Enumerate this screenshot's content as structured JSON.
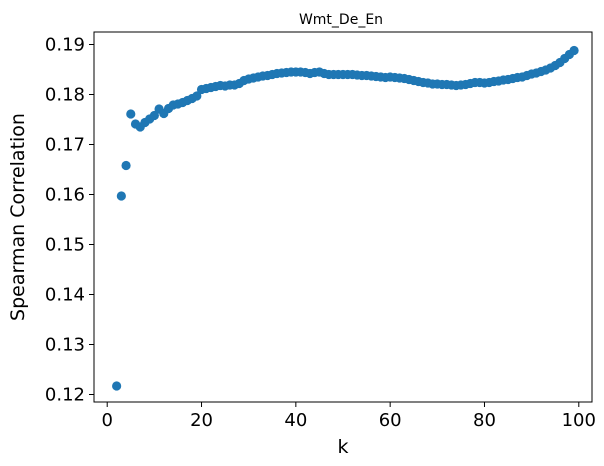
{
  "chart_data": {
    "type": "scatter",
    "title": "Wmt_De_En",
    "xlabel": "k",
    "ylabel": "Spearman Correlation",
    "xlim": [
      -2.8,
      102.8
    ],
    "ylim": [
      0.1185,
      0.1925
    ],
    "xticks": [
      0,
      20,
      40,
      60,
      80,
      100
    ],
    "yticks": [
      0.12,
      0.13,
      0.14,
      0.15,
      0.16,
      0.17,
      0.18,
      0.19
    ],
    "xtick_labels": [
      "0",
      "20",
      "40",
      "60",
      "80",
      "100"
    ],
    "ytick_labels": [
      "0.12",
      "0.13",
      "0.14",
      "0.15",
      "0.16",
      "0.17",
      "0.18",
      "0.19"
    ],
    "grid": false,
    "marker_color": "#1f77b4",
    "series": [
      {
        "x": [
          2,
          3,
          4,
          5,
          6,
          7,
          8,
          9,
          10,
          11,
          12,
          13,
          14,
          15,
          16,
          17,
          18,
          19,
          20,
          21,
          22,
          23,
          24,
          25,
          26,
          27,
          28,
          29,
          30,
          31,
          32,
          33,
          34,
          35,
          36,
          37,
          38,
          39,
          40,
          41,
          42,
          43,
          44,
          45,
          46,
          47,
          48,
          49,
          50,
          51,
          52,
          53,
          54,
          55,
          56,
          57,
          58,
          59,
          60,
          61,
          62,
          63,
          64,
          65,
          66,
          67,
          68,
          69,
          70,
          71,
          72,
          73,
          74,
          75,
          76,
          77,
          78,
          79,
          80,
          81,
          82,
          83,
          84,
          85,
          86,
          87,
          88,
          89,
          90,
          91,
          92,
          93,
          94,
          95,
          96,
          97,
          98,
          99
        ],
        "y": [
          0.1217,
          0.1597,
          0.1658,
          0.1761,
          0.1741,
          0.1735,
          0.1744,
          0.1751,
          0.1758,
          0.1771,
          0.1762,
          0.1772,
          0.1779,
          0.1781,
          0.1784,
          0.1788,
          0.1792,
          0.1797,
          0.181,
          0.1812,
          0.1814,
          0.1816,
          0.1818,
          0.1817,
          0.1819,
          0.1819,
          0.1822,
          0.1828,
          0.1831,
          0.1833,
          0.1835,
          0.1837,
          0.1838,
          0.184,
          0.1842,
          0.1843,
          0.1844,
          0.1845,
          0.1845,
          0.1845,
          0.1844,
          0.1842,
          0.1844,
          0.1845,
          0.1842,
          0.184,
          0.184,
          0.184,
          0.184,
          0.184,
          0.184,
          0.1839,
          0.1838,
          0.1838,
          0.1837,
          0.1836,
          0.1835,
          0.1834,
          0.1835,
          0.1834,
          0.1833,
          0.1832,
          0.183,
          0.1828,
          0.1826,
          0.1824,
          0.1823,
          0.1821,
          0.1821,
          0.182,
          0.182,
          0.1819,
          0.1818,
          0.1819,
          0.182,
          0.1822,
          0.1824,
          0.1824,
          0.1823,
          0.1824,
          0.1826,
          0.1827,
          0.1829,
          0.183,
          0.1832,
          0.1834,
          0.1835,
          0.1838,
          0.1841,
          0.1843,
          0.1846,
          0.1849,
          0.1853,
          0.1858,
          0.1864,
          0.1872,
          0.188,
          0.1888
        ]
      }
    ]
  }
}
